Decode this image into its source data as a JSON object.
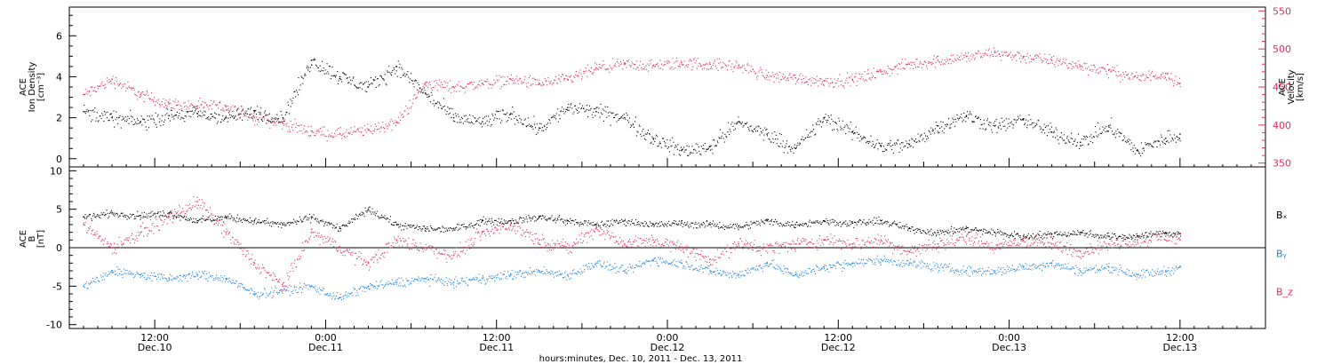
{
  "chart_data": [
    {
      "type": "scatter",
      "panel": "top",
      "ylabel_left": [
        "ACE",
        "Ion Density",
        "[cm⁻³]"
      ],
      "ylabel_right": [
        "ACE",
        "Velocity",
        "[km/s]"
      ],
      "ylim_left": [
        -0.4,
        7.4
      ],
      "ylim_right": [
        345,
        555
      ],
      "yticks_left": [
        0,
        2,
        4,
        6
      ],
      "yticks_right": [
        350,
        400,
        450,
        500,
        550
      ],
      "series": [
        {
          "name": "",
          "axis": "left",
          "color": "#000000",
          "x_hours": [
            7,
            9,
            11,
            13,
            15,
            17,
            19,
            21,
            23,
            25,
            27,
            29,
            31,
            33,
            35,
            37,
            39,
            41,
            43,
            45,
            47,
            49,
            51,
            53,
            55,
            57,
            59,
            61,
            63,
            65,
            67,
            69,
            71,
            73,
            75,
            77,
            79,
            81,
            83,
            84
          ],
          "values": [
            2.3,
            2.0,
            1.8,
            2.1,
            2.2,
            2.0,
            2.3,
            2.0,
            4.8,
            4.0,
            3.5,
            4.5,
            3.2,
            2.0,
            1.8,
            2.2,
            1.5,
            2.5,
            2.3,
            2.0,
            1.0,
            0.4,
            0.6,
            1.8,
            1.2,
            0.5,
            2.0,
            1.3,
            0.6,
            0.7,
            1.6,
            2.1,
            1.6,
            1.9,
            1.3,
            0.8,
            1.6,
            0.4,
            1.0,
            1.2
          ]
        },
        {
          "name": "",
          "axis": "right",
          "color": "#e0305a",
          "x_hours": [
            7,
            9,
            11,
            13,
            15,
            17,
            19,
            21,
            23,
            25,
            27,
            29,
            31,
            33,
            35,
            37,
            39,
            41,
            43,
            45,
            47,
            49,
            51,
            53,
            55,
            57,
            59,
            61,
            63,
            65,
            67,
            69,
            71,
            73,
            75,
            77,
            79,
            81,
            83,
            84
          ],
          "values": [
            440,
            460,
            440,
            428,
            425,
            425,
            410,
            402,
            392,
            388,
            394,
            404,
            455,
            450,
            455,
            460,
            455,
            460,
            475,
            480,
            478,
            482,
            480,
            478,
            465,
            462,
            458,
            460,
            470,
            480,
            485,
            490,
            495,
            490,
            485,
            478,
            472,
            462,
            468,
            455
          ]
        }
      ]
    },
    {
      "type": "scatter",
      "panel": "bottom",
      "ylabel_left": [
        "ACE",
        "B",
        "[nT]"
      ],
      "ylim": [
        -10.5,
        10.5
      ],
      "yticks_left": [
        -10,
        -5,
        0,
        5,
        10
      ],
      "zero_line": true,
      "legend": [
        "Bₓ",
        "Bᵧ",
        "B_z"
      ],
      "legend_placement": "right",
      "series": [
        {
          "name": "Bₓ",
          "color": "#000000",
          "x_hours": [
            7,
            9,
            11,
            13,
            15,
            17,
            19,
            21,
            23,
            25,
            27,
            29,
            31,
            33,
            35,
            37,
            39,
            41,
            43,
            45,
            47,
            49,
            51,
            53,
            55,
            57,
            59,
            61,
            63,
            65,
            67,
            69,
            71,
            73,
            75,
            77,
            79,
            81,
            83,
            84
          ],
          "values": [
            4.0,
            4.5,
            4.2,
            4.5,
            3.5,
            4.0,
            3.5,
            3.0,
            4.0,
            2.5,
            5.0,
            3.0,
            2.5,
            2.5,
            3.5,
            3.5,
            4.0,
            3.5,
            3.0,
            3.5,
            3.0,
            3.2,
            3.0,
            2.8,
            3.5,
            3.0,
            3.5,
            3.2,
            3.5,
            2.5,
            2.0,
            2.5,
            2.0,
            1.5,
            1.8,
            2.0,
            1.5,
            1.5,
            2.0,
            1.8
          ]
        },
        {
          "name": "Bᵧ",
          "color": "#1f86e0",
          "x_hours": [
            7,
            9,
            11,
            13,
            15,
            17,
            19,
            21,
            23,
            25,
            27,
            29,
            31,
            33,
            35,
            37,
            39,
            41,
            43,
            45,
            47,
            49,
            51,
            53,
            55,
            57,
            59,
            61,
            63,
            65,
            67,
            69,
            71,
            73,
            75,
            77,
            79,
            81,
            83,
            84
          ],
          "values": [
            -5.0,
            -3.0,
            -3.5,
            -4.0,
            -3.5,
            -4.0,
            -6.0,
            -5.5,
            -5.0,
            -6.5,
            -5.0,
            -4.5,
            -4.0,
            -4.5,
            -4.0,
            -3.5,
            -3.0,
            -3.5,
            -2.0,
            -3.0,
            -1.5,
            -2.0,
            -3.0,
            -3.5,
            -2.0,
            -3.5,
            -2.5,
            -2.0,
            -1.5,
            -2.0,
            -2.5,
            -3.0,
            -3.0,
            -2.5,
            -2.0,
            -3.0,
            -2.5,
            -3.5,
            -3.0,
            -2.5
          ]
        },
        {
          "name": "B_z",
          "color": "#e0305a",
          "x_hours": [
            7,
            9,
            11,
            13,
            15,
            17,
            19,
            21,
            23,
            25,
            27,
            29,
            31,
            33,
            35,
            37,
            39,
            41,
            43,
            45,
            47,
            49,
            51,
            53,
            55,
            57,
            59,
            61,
            63,
            65,
            67,
            69,
            71,
            73,
            75,
            77,
            79,
            81,
            83,
            84
          ],
          "values": [
            3.0,
            0.0,
            2.0,
            4.0,
            6.0,
            2.0,
            -2.0,
            -5.0,
            2.0,
            0.0,
            -2.0,
            1.0,
            0.0,
            -1.0,
            2.0,
            3.0,
            1.0,
            0.0,
            2.5,
            0.5,
            1.0,
            0.0,
            -1.5,
            0.5,
            0.0,
            0.5,
            1.0,
            0.5,
            1.0,
            -0.5,
            0.5,
            1.5,
            0.0,
            1.0,
            0.5,
            -0.5,
            0.5,
            1.0,
            1.5,
            1.0
          ]
        }
      ]
    }
  ],
  "x_axis": {
    "xlim_hours": [
      6,
      90
    ],
    "ticks": [
      {
        "hours": 12,
        "time": "12:00",
        "date": "Dec.10"
      },
      {
        "hours": 24,
        "time": "0:00",
        "date": "Dec.11"
      },
      {
        "hours": 36,
        "time": "12:00",
        "date": "Dec.11"
      },
      {
        "hours": 48,
        "time": "0:00",
        "date": "Dec.12"
      },
      {
        "hours": 60,
        "time": "12:00",
        "date": "Dec.12"
      },
      {
        "hours": 72,
        "time": "0:00",
        "date": "Dec.13"
      },
      {
        "hours": 84,
        "time": "12:00",
        "date": "Dec.13"
      }
    ],
    "xlabel": "hours:minutes, Dec. 10, 2011 - Dec. 13, 2011"
  }
}
